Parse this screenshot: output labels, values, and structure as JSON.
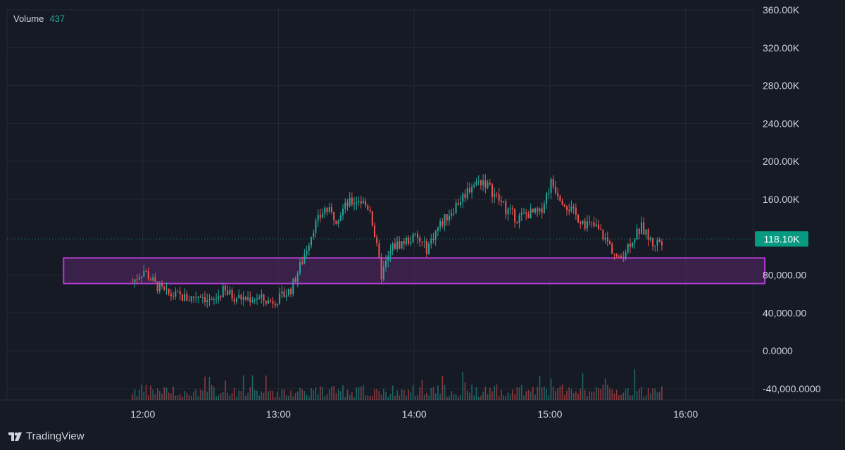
{
  "legend": {
    "label": "Volume",
    "value": "437"
  },
  "brand": {
    "name": "TradingView"
  },
  "colors": {
    "background": "#161a25",
    "grid": "#242833",
    "up": "#26a69a",
    "down": "#ef5350",
    "zone_fill": "#4a2558",
    "zone_stroke": "#b03cd0",
    "price_label_bg": "#089981",
    "axis_text": "#d1d4dc"
  },
  "chart_data": {
    "type": "candlestick",
    "title": "",
    "y_ticks": [
      "360.00K",
      "320.00K",
      "280.00K",
      "240.00K",
      "200.00K",
      "160.00K",
      "80,000.00",
      "40,000.00",
      "0.0000",
      "-40,000.0000"
    ],
    "x_ticks": [
      "12:00",
      "13:00",
      "14:00",
      "15:00",
      "16:00"
    ],
    "x_range": [
      "11:00",
      "16:30"
    ],
    "y_range": [
      -52000,
      363000
    ],
    "last_price": {
      "value": 118100,
      "label": "118.10K"
    },
    "zone": {
      "from_time": "11:25",
      "to_time": "16:35",
      "low": 71000,
      "high": 98000
    },
    "grid": true,
    "candles": [
      [
        "11:55",
        73000
      ],
      [
        "12:00",
        85000
      ],
      [
        "12:05",
        70000
      ],
      [
        "12:10",
        60000
      ],
      [
        "12:15",
        58000
      ],
      [
        "12:20",
        55000
      ],
      [
        "12:25",
        60000
      ],
      [
        "12:30",
        50000
      ],
      [
        "12:35",
        63000
      ],
      [
        "12:40",
        57000
      ],
      [
        "12:45",
        55000
      ],
      [
        "12:50",
        56000
      ],
      [
        "12:55",
        52000
      ],
      [
        "13:00",
        55000
      ],
      [
        "13:05",
        65000
      ],
      [
        "13:10",
        95000
      ],
      [
        "13:15",
        130000
      ],
      [
        "13:20",
        150000
      ],
      [
        "13:25",
        140000
      ],
      [
        "13:30",
        155000
      ],
      [
        "13:35",
        160000
      ],
      [
        "13:40",
        150000
      ],
      [
        "13:45",
        80000
      ],
      [
        "13:50",
        110000
      ],
      [
        "13:55",
        115000
      ],
      [
        "14:00",
        120000
      ],
      [
        "14:05",
        108000
      ],
      [
        "14:10",
        130000
      ],
      [
        "14:15",
        145000
      ],
      [
        "14:20",
        160000
      ],
      [
        "14:25",
        175000
      ],
      [
        "14:30",
        180000
      ],
      [
        "14:35",
        165000
      ],
      [
        "14:40",
        150000
      ],
      [
        "14:45",
        140000
      ],
      [
        "14:50",
        145000
      ],
      [
        "14:55",
        145000
      ],
      [
        "15:00",
        178000
      ],
      [
        "15:05",
        160000
      ],
      [
        "15:10",
        145000
      ],
      [
        "15:15",
        135000
      ],
      [
        "15:20",
        130000
      ],
      [
        "15:25",
        115000
      ],
      [
        "15:30",
        95000
      ],
      [
        "15:35",
        115000
      ],
      [
        "15:40",
        130000
      ],
      [
        "15:45",
        113000
      ],
      [
        "15:50",
        118100
      ]
    ]
  }
}
